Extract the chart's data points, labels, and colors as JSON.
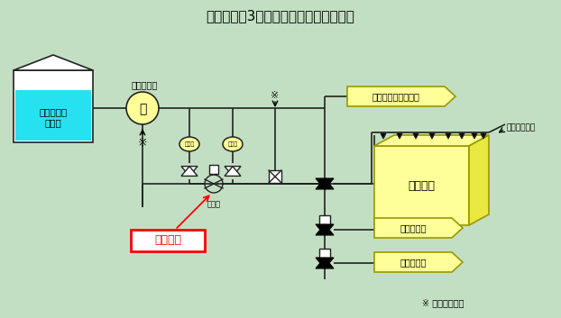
{
  "title": "伊方発電所3号機　消火用水系統概略図",
  "bg_color": "#c3dfc3",
  "title_fontsize": 11,
  "tank_label": "ろ過水貯蔵\nタンク",
  "pump_label": "消火ポンプ",
  "hydrant_label": "屋内、屋外消火栓等",
  "main_transformer_label": "主変圧器",
  "spare_transformer_label": "予備変圧器",
  "internal_transformer_label": "所内変圧器",
  "nozzle_label": "水噴霧ノズル",
  "pressure_gauge_label": "圧力計",
  "pressure_valve_label": "減圧弁",
  "current_location_label": "当該箇所",
  "fire_signal_label": "※ 火災模擬信号",
  "asterisk": "※",
  "yellow": "#ffff99",
  "dark_yellow_edge": "#999900",
  "line_color": "#222222",
  "red_color": "#ff0000",
  "transformer_fill": "#ffff99",
  "transformer_side": "#e8e840",
  "water_color": "#00ddee",
  "white": "#ffffff",
  "black": "#000000"
}
